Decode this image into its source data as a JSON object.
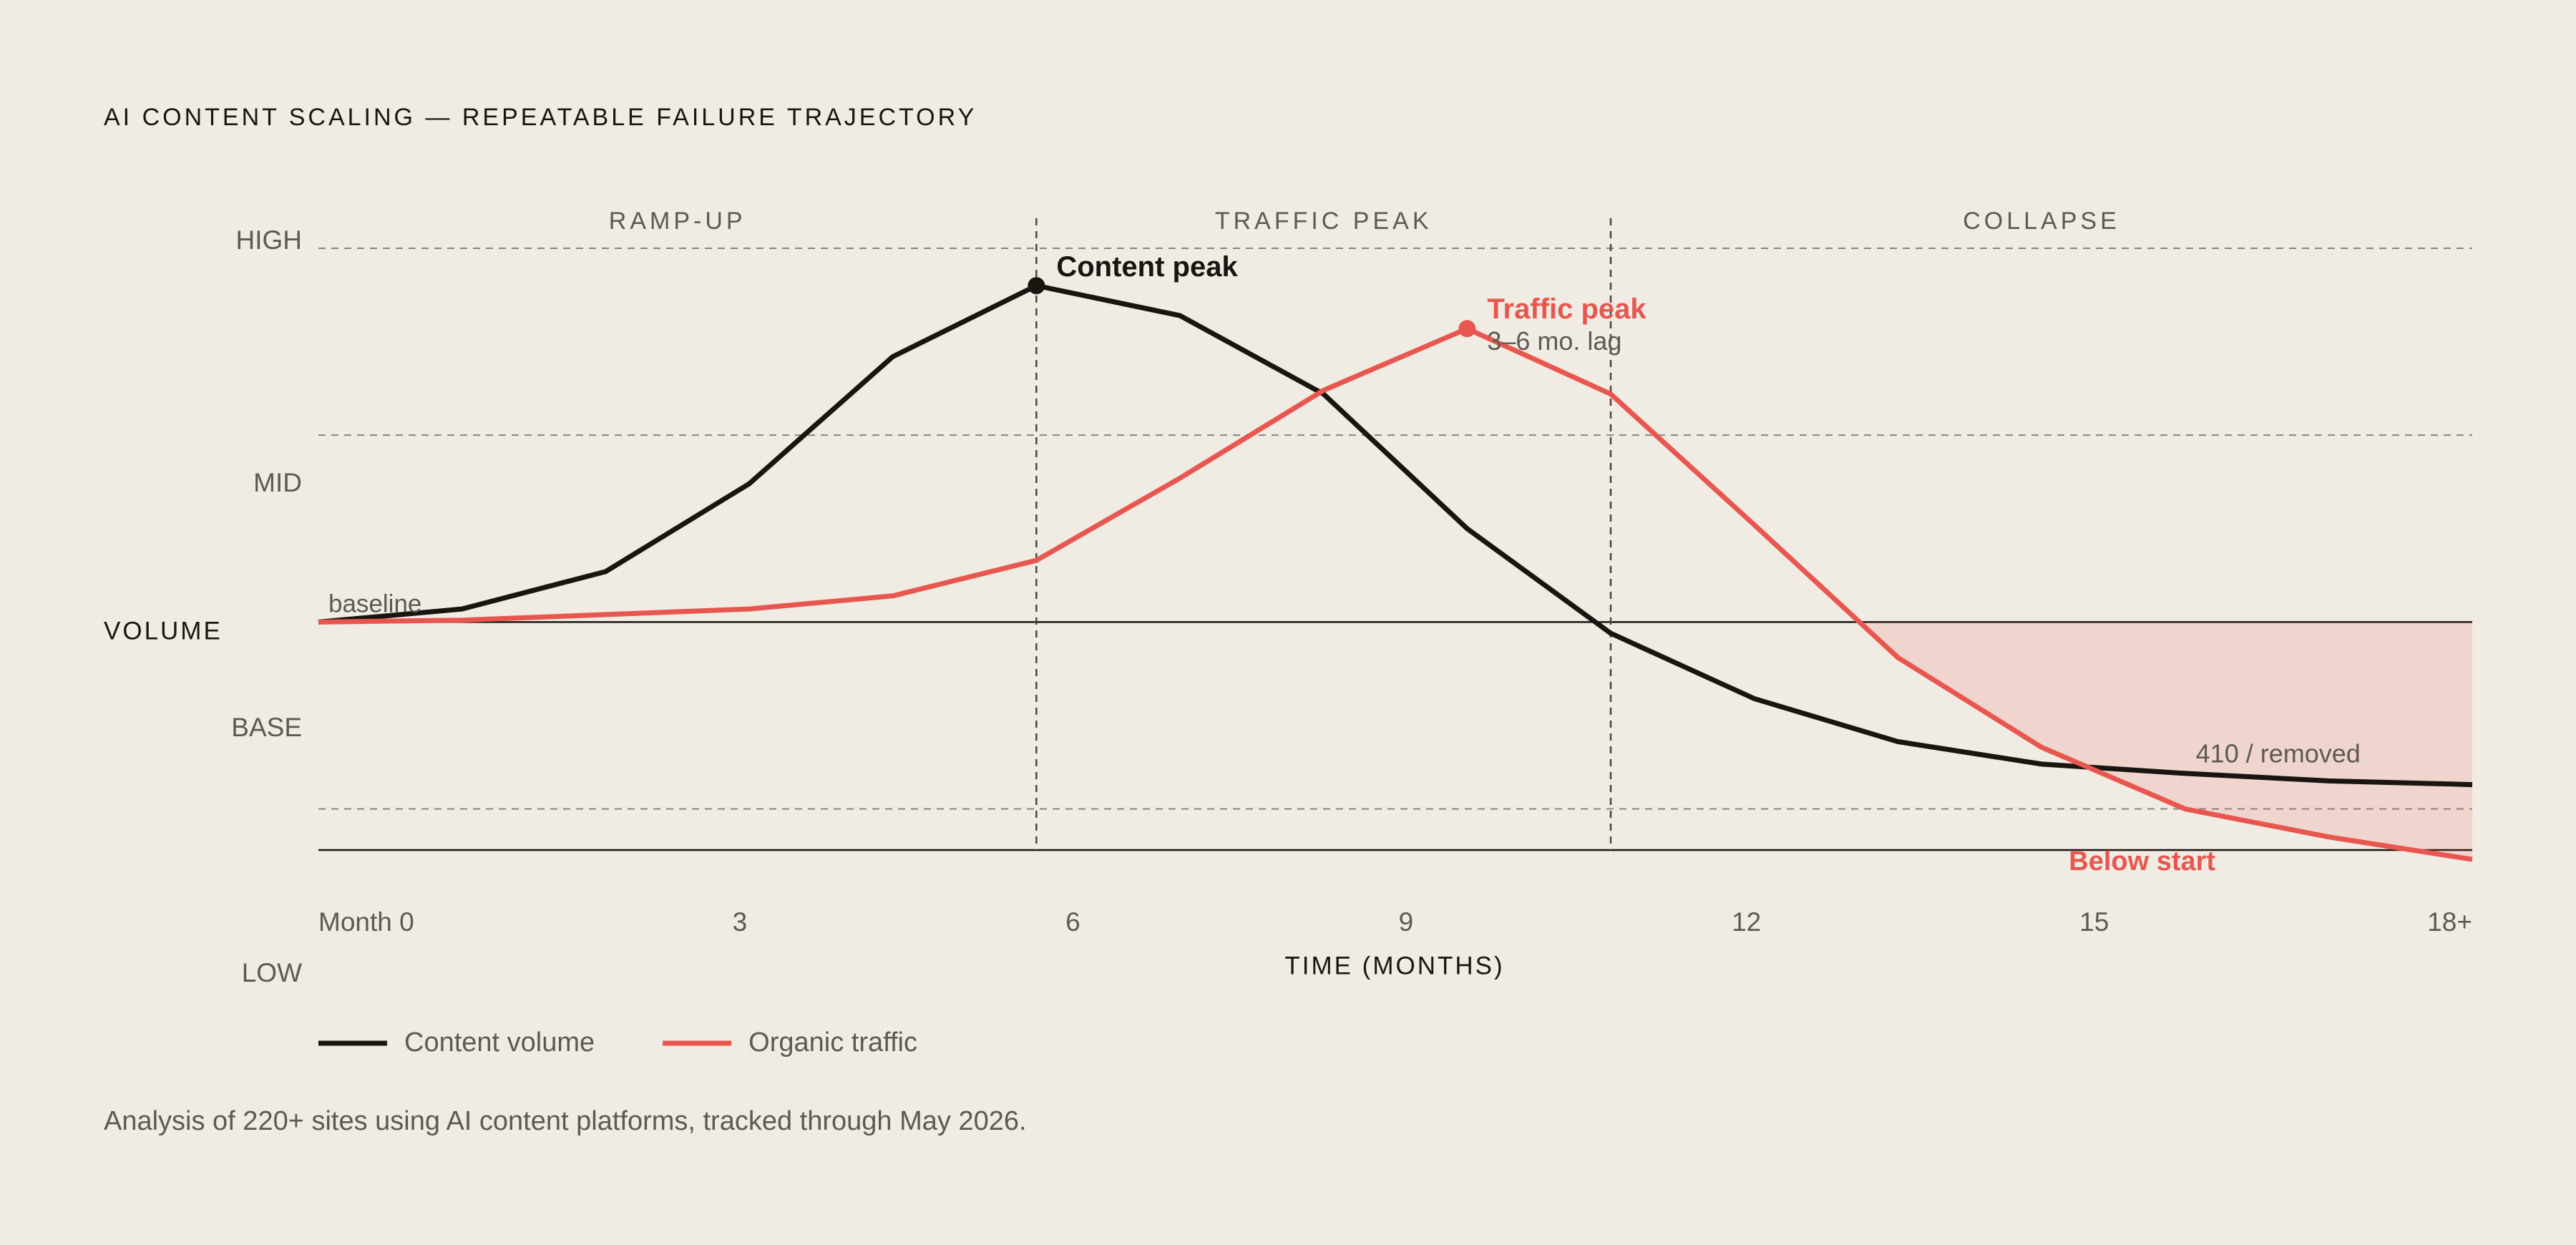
{
  "chart_data": {
    "type": "line",
    "title": "AI CONTENT SCALING — REPEATABLE FAILURE TRAJECTORY",
    "x": [
      0,
      1.2,
      2.4,
      3.6,
      4.8,
      6,
      7.2,
      8.4,
      9.6,
      10.8,
      12,
      13.2,
      14.4,
      15.6,
      16.8,
      18
    ],
    "xlim": [
      0,
      18
    ],
    "ylim": [
      -1.22,
      2
    ],
    "yticks": [
      -1,
      0,
      1,
      2
    ],
    "x_labels": [
      "Month 0",
      "3",
      "6",
      "9",
      "12",
      "15",
      "18+"
    ],
    "y_labels": [
      "HIGH",
      "MID",
      "BASE",
      "LOW"
    ],
    "x_label": "TIME (MONTHS)",
    "y_label": "VOLUME",
    "phases": [
      "RAMP-UP",
      "TRAFFIC PEAK",
      "COLLAPSE"
    ],
    "phase_dividers": [
      6,
      10.8
    ],
    "series": [
      {
        "name": "Content volume",
        "color": "#1a1511",
        "values": [
          0,
          0.07,
          0.27,
          0.74,
          1.42,
          1.8,
          1.64,
          1.22,
          0.5,
          -0.06,
          -0.41,
          -0.64,
          -0.76,
          -0.81,
          -0.85,
          -0.87
        ]
      },
      {
        "name": "Organic traffic",
        "color": "#e8574f",
        "values": [
          0,
          0.01,
          0.04,
          0.07,
          0.14,
          0.33,
          0.77,
          1.24,
          1.57,
          1.22,
          0.52,
          -0.19,
          -0.67,
          -1.0,
          -1.15,
          -1.27
        ]
      }
    ],
    "annotations": {
      "content_peak": "Content peak",
      "traffic_peak": "Traffic peak",
      "lag": "3–6 mo. lag",
      "baseline": "baseline",
      "removed": "410 / removed",
      "below_start": "Below start"
    },
    "note": "Analysis of 220+ sites using AI content platforms, tracked through May 2026."
  }
}
